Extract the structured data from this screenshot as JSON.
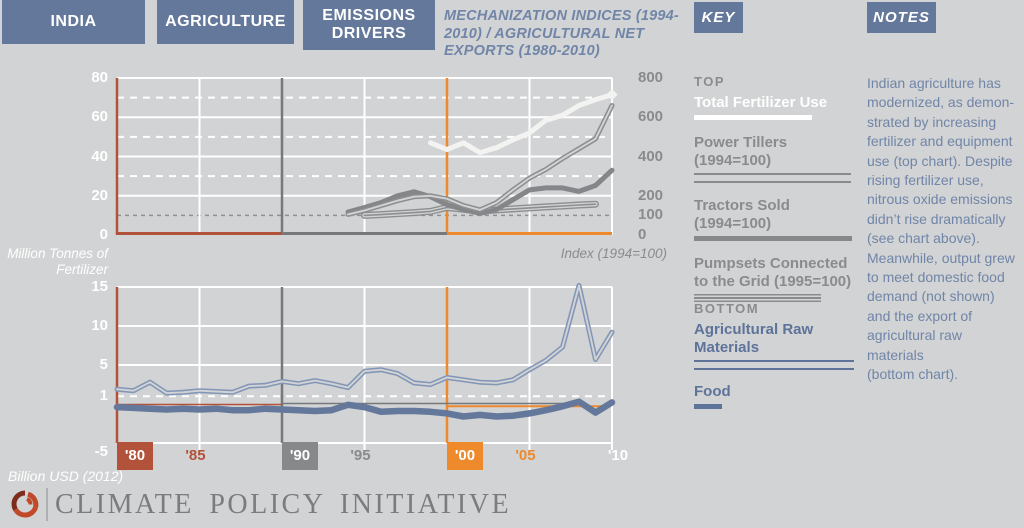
{
  "header": {
    "tabs": [
      {
        "label": "INDIA"
      },
      {
        "label": "AGRICULTURE"
      },
      {
        "label": "EMISSIONS DRIVERS"
      }
    ],
    "title": "MECHANIZATION INDICES (1994-2010) / AGRICULTURAL NET EXPORTS (1980-2010)",
    "key_label": "KEY",
    "notes_label": "NOTES"
  },
  "key": {
    "top_label": "TOP",
    "bottom_label": "BOTTOM",
    "items_top": [
      {
        "label": "Total Fertilizer Use",
        "swatch": "white-thick",
        "text_color": "key-white"
      },
      {
        "label": "Power Tillers (1994=100)",
        "swatch": "gray-double",
        "text_color": "key-gray"
      },
      {
        "label": "Tractors Sold (1994=100)",
        "swatch": "gray-thick",
        "text_color": "key-gray"
      },
      {
        "label": "Pumpsets Connected to the Grid (1995=100)",
        "swatch": "gray-triple",
        "text_color": "key-gray"
      }
    ],
    "items_bottom": [
      {
        "label": "Agricultural Raw Materials",
        "swatch": "blue-double",
        "text_color": "key-blue"
      },
      {
        "label": "Food",
        "swatch": "blue-thick",
        "text_color": "key-blue"
      }
    ]
  },
  "notes": {
    "lines": [
      "Indian agriculture has",
      "modernized, as demon-",
      "strated by increasing",
      "fertilizer and equipment",
      "use (top chart). Despite",
      "rising fertilizer use,",
      "nitrous oxide emissions",
      "didn’t rise dramatically",
      "(see chart above).",
      "Meanwhile, output grew",
      "to meet domestic food",
      "demand (not shown)",
      "and the export of",
      "agricultural raw materials",
      "(bottom chart)."
    ]
  },
  "footer": {
    "brand": "CLIMATE POLICY INITIATIVE"
  },
  "colors": {
    "background": "#d2d3d4",
    "tab_blue": "#64789b",
    "decade_red": "#b2523a",
    "decade_gray": "#77787a",
    "decade_orange": "#ee8a2b",
    "grid_white": "#ffffff",
    "index_gray_line": "#8d8e90",
    "tractor_gray_line": "#858689",
    "fertilizer_white_line": "#f3f3f2",
    "raw_materials_blue": "#8296b7",
    "food_blue": "#64789b",
    "axis_label_gray": "#8a8b8d"
  },
  "chart_data": [
    {
      "type": "line",
      "title": "Mechanization indices (1994-2010) and total fertilizer use",
      "position": "top",
      "ylabel_left": "Million Tonnes of Fertilizer",
      "ylabel_right": "Index (1994=100)",
      "ylim_left": [
        0,
        80
      ],
      "ylim_right": [
        0,
        800
      ],
      "xlim": [
        1980,
        2010
      ],
      "grid": true,
      "y_ticks_left": [
        {
          "label": "80",
          "value": 80
        },
        {
          "label": "60",
          "value": 60
        },
        {
          "label": "40",
          "value": 40
        },
        {
          "label": "20",
          "value": 20
        },
        {
          "label": "0",
          "value": 0
        }
      ],
      "y_ticks_right": [
        {
          "label": "800",
          "value": 800
        },
        {
          "label": "600",
          "value": 600
        },
        {
          "label": "400",
          "value": 400
        },
        {
          "label": "200",
          "value": 200
        },
        {
          "label": "100",
          "value": 100
        },
        {
          "label": "0",
          "value": 0
        }
      ],
      "series": [
        {
          "name": "Pumpsets Connected to the Grid (1995=100)",
          "axis": "right",
          "style": "triple",
          "color": "#8d8e90",
          "x": [
            1995,
            1996,
            1997,
            1998,
            1999,
            2000,
            2001,
            2002,
            2003,
            2004,
            2005,
            2006,
            2007,
            2008,
            2009
          ],
          "values": [
            100,
            104,
            109,
            114,
            120,
            140,
            131,
            122,
            128,
            133,
            138,
            143,
            148,
            153,
            157
          ]
        },
        {
          "name": "Tractors Sold (1994=100)",
          "axis": "right",
          "style": "thick",
          "color": "#858689",
          "width": 5,
          "x": [
            1994,
            1995,
            1996,
            1997,
            1998,
            1999,
            2000,
            2001,
            2002,
            2003,
            2004,
            2005,
            2006,
            2007,
            2008,
            2009,
            2010
          ],
          "values": [
            117,
            140,
            165,
            200,
            220,
            195,
            155,
            130,
            110,
            130,
            180,
            230,
            240,
            240,
            222,
            252,
            330
          ]
        },
        {
          "name": "Power Tillers (1994=100)",
          "axis": "right",
          "style": "double",
          "color": "#8d8e90",
          "x": [
            1994,
            1995,
            1996,
            1997,
            1998,
            1999,
            2000,
            2001,
            2002,
            2003,
            2004,
            2005,
            2006,
            2007,
            2008,
            2009,
            2010
          ],
          "values": [
            105,
            125,
            150,
            175,
            195,
            200,
            185,
            150,
            128,
            165,
            230,
            290,
            335,
            390,
            440,
            490,
            660
          ]
        },
        {
          "name": "Total Fertilizer Use",
          "axis": "left",
          "style": "thick",
          "color": "#f3f3f2",
          "width": 5,
          "end_marker": true,
          "x": [
            1999,
            2000,
            2001,
            2002,
            2003,
            2004,
            2005,
            2006,
            2007,
            2008,
            2009,
            2010
          ],
          "values": [
            47,
            43.5,
            47,
            42,
            44.5,
            48.5,
            52,
            58.5,
            61,
            66,
            69,
            71.5
          ]
        }
      ]
    },
    {
      "type": "line",
      "title": "Agricultural net exports (1980-2010)",
      "position": "bottom",
      "ylabel": "Billion USD (2012)",
      "ylim": [
        -5,
        15
      ],
      "xlim": [
        1980,
        2010
      ],
      "grid": true,
      "y_ticks": [
        {
          "label": "15",
          "value": 15
        },
        {
          "label": "10",
          "value": 10
        },
        {
          "label": "5",
          "value": 5
        },
        {
          "label": "1",
          "value": 1
        },
        {
          "label": "-5",
          "value": -5
        }
      ],
      "x_ticks": [
        {
          "label": "'80",
          "year": 1980,
          "style": "box-red"
        },
        {
          "label": "'85",
          "year": 1985,
          "style": "text-red"
        },
        {
          "label": "'90",
          "year": 1990,
          "style": "box-gray"
        },
        {
          "label": "'95",
          "year": 1995,
          "style": "text-gray"
        },
        {
          "label": "'00",
          "year": 2000,
          "style": "box-orange"
        },
        {
          "label": "'05",
          "year": 2005,
          "style": "text-orange"
        },
        {
          "label": "'10",
          "year": 2010,
          "style": "text-white"
        }
      ],
      "series": [
        {
          "name": "Agricultural Raw Materials",
          "style": "double",
          "color": "#8296b7",
          "x": [
            1980,
            1981,
            1982,
            1983,
            1984,
            1985,
            1986,
            1987,
            1988,
            1989,
            1990,
            1991,
            1992,
            1993,
            1994,
            1995,
            1996,
            1997,
            1998,
            1999,
            2000,
            2001,
            2002,
            2003,
            2004,
            2005,
            2006,
            2007,
            2008,
            2009,
            2010
          ],
          "values": [
            1.9,
            1.7,
            2.8,
            1.4,
            1.5,
            1.7,
            1.6,
            1.5,
            2.3,
            2.4,
            2.9,
            2.6,
            3.0,
            2.6,
            2.1,
            4.2,
            4.4,
            3.9,
            2.7,
            2.5,
            3.4,
            3.1,
            2.8,
            2.7,
            3.1,
            4.4,
            5.6,
            7.3,
            15.2,
            5.7,
            9.2
          ]
        },
        {
          "name": "Food",
          "style": "thick",
          "color": "#64789b",
          "width": 6.5,
          "x": [
            1980,
            1981,
            1982,
            1983,
            1984,
            1985,
            1986,
            1987,
            1988,
            1989,
            1990,
            1991,
            1992,
            1993,
            1994,
            1995,
            1996,
            1997,
            1998,
            1999,
            2000,
            2001,
            2002,
            2003,
            2004,
            2005,
            2006,
            2007,
            2008,
            2009,
            2010
          ],
          "values": [
            -0.4,
            -0.5,
            -0.6,
            -0.7,
            -0.6,
            -0.7,
            -0.6,
            -0.8,
            -0.8,
            -0.6,
            -0.7,
            -0.8,
            -0.9,
            -0.8,
            -0.1,
            -0.4,
            -1.0,
            -0.9,
            -0.9,
            -1.0,
            -1.2,
            -1.6,
            -1.4,
            -1.6,
            -1.5,
            -1.2,
            -0.8,
            -0.3,
            0.3,
            -1.1,
            0.2
          ]
        }
      ]
    }
  ]
}
